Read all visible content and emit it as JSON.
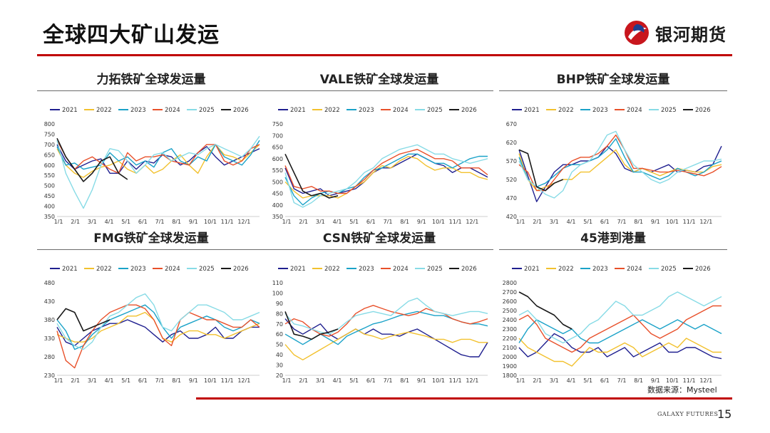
{
  "header": {
    "title": "全球四大矿山发运"
  },
  "logo": {
    "text": "银河期货",
    "red": "#c8161d",
    "blue": "#1f3e8f"
  },
  "footer": {
    "source": "数据来源：Mysteel",
    "brand": "GALAXY FUTURES",
    "page": "15"
  },
  "colors": {
    "accent": "#c00000"
  },
  "legend": [
    {
      "name": "2021",
      "color": "#1f1f8f"
    },
    {
      "name": "2022",
      "color": "#f2c12e"
    },
    {
      "name": "2023",
      "color": "#1aa2c8"
    },
    {
      "name": "2024",
      "color": "#e8502a"
    },
    {
      "name": "2025",
      "color": "#87dbe6"
    },
    {
      "name": "2026",
      "color": "#1a1a1a"
    }
  ],
  "chart_data": [
    {
      "type": "line",
      "title": "力拓铁矿全球发运量",
      "x_labels": [
        "1/1",
        "2/1",
        "3/1",
        "4/1",
        "5/1",
        "6/1",
        "7/1",
        "8/1",
        "9/1",
        "10/1",
        "11/1",
        "12/1"
      ],
      "ylim": [
        350,
        800
      ],
      "yticks": [
        350,
        400,
        450,
        500,
        550,
        600,
        650,
        700,
        750,
        800
      ],
      "series": [
        {
          "name": "2021",
          "values": [
            700,
            620,
            580,
            600,
            620,
            630,
            560,
            560,
            620,
            580,
            620,
            610,
            650,
            640,
            600,
            620,
            660,
            690,
            640,
            600,
            620,
            640,
            660,
            680
          ]
        },
        {
          "name": "2022",
          "values": [
            680,
            600,
            560,
            540,
            570,
            590,
            600,
            620,
            580,
            560,
            600,
            560,
            580,
            620,
            650,
            600,
            560,
            640,
            700,
            650,
            640,
            620,
            660,
            700
          ]
        },
        {
          "name": "2023",
          "values": [
            690,
            600,
            610,
            580,
            590,
            600,
            660,
            620,
            640,
            600,
            620,
            590,
            660,
            680,
            620,
            600,
            640,
            620,
            700,
            640,
            620,
            600,
            650,
            720
          ]
        },
        {
          "name": "2024",
          "values": [
            720,
            640,
            580,
            620,
            640,
            610,
            580,
            560,
            660,
            620,
            640,
            640,
            650,
            620,
            610,
            600,
            660,
            700,
            700,
            620,
            600,
            620,
            680,
            700
          ]
        },
        {
          "name": "2025",
          "values": [
            720,
            560,
            470,
            390,
            480,
            600,
            680,
            670,
            620,
            560,
            600,
            650,
            660,
            620,
            640,
            660,
            650,
            680,
            700,
            680,
            660,
            640,
            680,
            740
          ]
        },
        {
          "name": "2026",
          "values": [
            730,
            640,
            580,
            520,
            560,
            620,
            640,
            560,
            530
          ]
        }
      ]
    },
    {
      "type": "line",
      "title": "VALE铁矿全球发运量",
      "x_labels": [
        "1/1",
        "2/1",
        "3/1",
        "4/1",
        "5/1",
        "6/1",
        "7/1",
        "8/1",
        "9/1",
        "10/1",
        "11/1",
        "12/1"
      ],
      "ylim": [
        350,
        750
      ],
      "yticks": [
        350,
        400,
        450,
        500,
        550,
        600,
        650,
        700,
        750
      ],
      "series": [
        {
          "name": "2021",
          "values": [
            560,
            470,
            450,
            460,
            470,
            440,
            450,
            460,
            470,
            500,
            540,
            560,
            560,
            580,
            600,
            620,
            600,
            580,
            570,
            540,
            560,
            560,
            540,
            520
          ]
        },
        {
          "name": "2022",
          "values": [
            500,
            460,
            430,
            440,
            440,
            440,
            430,
            450,
            480,
            500,
            540,
            570,
            560,
            590,
            610,
            600,
            570,
            550,
            560,
            560,
            540,
            540,
            520,
            510
          ]
        },
        {
          "name": "2023",
          "values": [
            520,
            440,
            400,
            430,
            450,
            460,
            450,
            470,
            480,
            520,
            550,
            560,
            580,
            600,
            620,
            620,
            600,
            580,
            580,
            560,
            580,
            600,
            610,
            610
          ]
        },
        {
          "name": "2024",
          "values": [
            570,
            480,
            470,
            480,
            460,
            460,
            450,
            450,
            480,
            510,
            550,
            580,
            600,
            620,
            630,
            640,
            620,
            600,
            600,
            590,
            560,
            560,
            560,
            530
          ]
        },
        {
          "name": "2025",
          "values": [
            540,
            410,
            390,
            410,
            440,
            450,
            460,
            470,
            500,
            540,
            560,
            600,
            620,
            640,
            650,
            660,
            640,
            620,
            620,
            600,
            590,
            580,
            590,
            600
          ]
        },
        {
          "name": "2026",
          "values": [
            620,
            540,
            460,
            440,
            450,
            430,
            440
          ]
        }
      ]
    },
    {
      "type": "line",
      "title": "BHP铁矿全球发运量",
      "x_labels": [
        "1/1",
        "2/1",
        "3/1",
        "4/1",
        "5/1",
        "6/1",
        "7/1",
        "8/1",
        "9/1",
        "10/1",
        "11/1",
        "12/1"
      ],
      "ylim": [
        420,
        670
      ],
      "yticks": [
        420,
        470,
        520,
        570,
        620,
        670
      ],
      "series": [
        {
          "name": "2021",
          "values": [
            600,
            530,
            460,
            500,
            540,
            560,
            560,
            570,
            570,
            580,
            610,
            590,
            550,
            540,
            550,
            540,
            550,
            560,
            540,
            545,
            540,
            555,
            560,
            610
          ]
        },
        {
          "name": "2022",
          "values": [
            590,
            520,
            490,
            500,
            510,
            520,
            520,
            540,
            540,
            560,
            580,
            600,
            560,
            540,
            550,
            540,
            530,
            540,
            550,
            545,
            540,
            540,
            555,
            560
          ]
        },
        {
          "name": "2023",
          "values": [
            580,
            520,
            500,
            510,
            530,
            550,
            560,
            560,
            570,
            580,
            600,
            630,
            580,
            540,
            540,
            530,
            520,
            530,
            550,
            540,
            530,
            540,
            560,
            570
          ]
        },
        {
          "name": "2024",
          "values": [
            560,
            540,
            490,
            490,
            520,
            550,
            570,
            580,
            580,
            590,
            610,
            640,
            600,
            550,
            550,
            545,
            540,
            540,
            545,
            540,
            535,
            530,
            540,
            555
          ]
        },
        {
          "name": "2025",
          "values": [
            570,
            520,
            500,
            480,
            470,
            490,
            540,
            560,
            570,
            600,
            640,
            650,
            600,
            560,
            540,
            520,
            510,
            520,
            540,
            550,
            560,
            570,
            570,
            575
          ]
        },
        {
          "name": "2026",
          "values": [
            600,
            590,
            500,
            490,
            510,
            520
          ]
        }
      ]
    },
    {
      "type": "line",
      "title": "FMG铁矿全球发运量",
      "x_labels": [
        "1/1",
        "2/1",
        "3/1",
        "4/1",
        "5/1",
        "6/1",
        "7/1",
        "8/1",
        "9/1",
        "10/1",
        "11/1",
        "12/1"
      ],
      "ylim": [
        230,
        480
      ],
      "yticks": [
        230,
        280,
        330,
        380,
        430,
        480
      ],
      "series": [
        {
          "name": "2021",
          "values": [
            360,
            320,
            310,
            330,
            350,
            360,
            370,
            370,
            380,
            370,
            360,
            340,
            320,
            340,
            350,
            330,
            330,
            340,
            360,
            330,
            330,
            350,
            360,
            360
          ]
        },
        {
          "name": "2022",
          "values": [
            340,
            330,
            320,
            320,
            330,
            350,
            360,
            370,
            390,
            390,
            400,
            380,
            330,
            320,
            340,
            350,
            350,
            340,
            340,
            330,
            340,
            350,
            360,
            370
          ]
        },
        {
          "name": "2023",
          "values": [
            380,
            350,
            300,
            310,
            340,
            360,
            380,
            390,
            400,
            410,
            420,
            400,
            360,
            330,
            360,
            370,
            380,
            390,
            380,
            360,
            350,
            360,
            380,
            370
          ]
        },
        {
          "name": "2024",
          "values": [
            350,
            270,
            250,
            310,
            350,
            380,
            400,
            410,
            420,
            420,
            410,
            380,
            330,
            310,
            380,
            400,
            390,
            380,
            380,
            370,
            360,
            360,
            380,
            360
          ]
        },
        {
          "name": "2025",
          "values": [
            370,
            330,
            310,
            300,
            320,
            360,
            390,
            400,
            420,
            440,
            450,
            420,
            360,
            350,
            380,
            400,
            420,
            420,
            410,
            400,
            380,
            380,
            390,
            400
          ]
        },
        {
          "name": "2026",
          "values": [
            380,
            410,
            400,
            350,
            360,
            370,
            380
          ]
        }
      ]
    },
    {
      "type": "line",
      "title": "CSN铁矿全球发运量",
      "x_labels": [
        "1/1",
        "2/1",
        "3/1",
        "4/1",
        "5/1",
        "6/1",
        "7/1",
        "8/1",
        "9/1",
        "10/1",
        "11/1",
        "12/1"
      ],
      "ylim": [
        20,
        110
      ],
      "yticks": [
        20,
        30,
        40,
        50,
        60,
        70,
        80,
        90,
        100,
        110
      ],
      "series": [
        {
          "name": "2021",
          "values": [
            75,
            65,
            60,
            65,
            70,
            60,
            55,
            60,
            65,
            60,
            65,
            60,
            60,
            58,
            62,
            65,
            60,
            55,
            50,
            45,
            40,
            38,
            38,
            52
          ]
        },
        {
          "name": "2022",
          "values": [
            50,
            40,
            35,
            40,
            45,
            50,
            55,
            60,
            65,
            60,
            58,
            55,
            58,
            60,
            62,
            60,
            58,
            55,
            55,
            52,
            55,
            55,
            52,
            52
          ]
        },
        {
          "name": "2023",
          "values": [
            60,
            55,
            50,
            55,
            60,
            55,
            50,
            58,
            62,
            66,
            70,
            72,
            75,
            78,
            80,
            82,
            80,
            78,
            78,
            75,
            72,
            70,
            70,
            68
          ]
        },
        {
          "name": "2024",
          "values": [
            70,
            75,
            72,
            65,
            60,
            58,
            62,
            70,
            80,
            85,
            88,
            85,
            82,
            80,
            78,
            80,
            85,
            82,
            80,
            75,
            72,
            70,
            72,
            75
          ]
        },
        {
          "name": "2025",
          "values": [
            80,
            70,
            68,
            65,
            62,
            60,
            65,
            72,
            78,
            80,
            82,
            80,
            78,
            85,
            92,
            95,
            88,
            82,
            80,
            78,
            80,
            82,
            82,
            80
          ]
        },
        {
          "name": "2026",
          "values": [
            82,
            60,
            58,
            55,
            60,
            62,
            65
          ]
        }
      ]
    },
    {
      "type": "line",
      "title": "45港到港量",
      "x_labels": [
        "1/1",
        "2/1",
        "3/1",
        "4/1",
        "5/1",
        "6/1",
        "7/1",
        "8/1",
        "9/1",
        "10/1",
        "11/1",
        "12/1"
      ],
      "ylim": [
        1800,
        2800
      ],
      "yticks": [
        1800,
        1900,
        2000,
        2100,
        2200,
        2300,
        2400,
        2500,
        2600,
        2700,
        2800
      ],
      "series": [
        {
          "name": "2021",
          "values": [
            2100,
            2000,
            2050,
            2150,
            2250,
            2200,
            2100,
            2050,
            2050,
            2100,
            2000,
            2050,
            2100,
            2000,
            2050,
            2100,
            2150,
            2050,
            2050,
            2100,
            2100,
            2050,
            2000,
            1980
          ]
        },
        {
          "name": "2022",
          "values": [
            2200,
            2100,
            2050,
            2000,
            1950,
            1950,
            1900,
            2000,
            2100,
            2050,
            2050,
            2100,
            2150,
            2100,
            2000,
            2050,
            2100,
            2150,
            2100,
            2200,
            2150,
            2100,
            2050,
            2050
          ]
        },
        {
          "name": "2023",
          "values": [
            2150,
            2300,
            2400,
            2350,
            2300,
            2250,
            2300,
            2200,
            2150,
            2150,
            2200,
            2250,
            2300,
            2350,
            2400,
            2350,
            2300,
            2350,
            2400,
            2350,
            2300,
            2350,
            2300,
            2250
          ]
        },
        {
          "name": "2024",
          "values": [
            2400,
            2450,
            2350,
            2200,
            2150,
            2100,
            2050,
            2100,
            2200,
            2250,
            2300,
            2350,
            2400,
            2450,
            2350,
            2250,
            2200,
            2250,
            2300,
            2400,
            2450,
            2500,
            2550,
            2550
          ]
        },
        {
          "name": "2025",
          "values": [
            2450,
            2500,
            2400,
            2250,
            2200,
            2150,
            2200,
            2250,
            2350,
            2400,
            2500,
            2600,
            2550,
            2450,
            2450,
            2500,
            2550,
            2650,
            2700,
            2650,
            2600,
            2550,
            2600,
            2650
          ]
        },
        {
          "name": "2026",
          "values": [
            2700,
            2650,
            2550,
            2500,
            2450,
            2350,
            2300
          ]
        }
      ]
    }
  ]
}
